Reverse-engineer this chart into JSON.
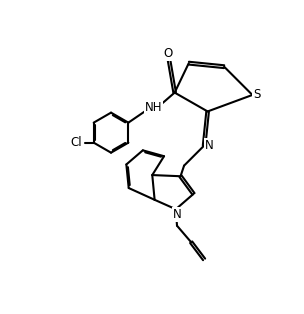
{
  "background_color": "#ffffff",
  "line_color": "#000000",
  "line_width": 1.5,
  "fig_width": 3.04,
  "fig_height": 3.14,
  "dpi": 100,
  "xlim": [
    0,
    10
  ],
  "ylim": [
    0,
    10
  ]
}
